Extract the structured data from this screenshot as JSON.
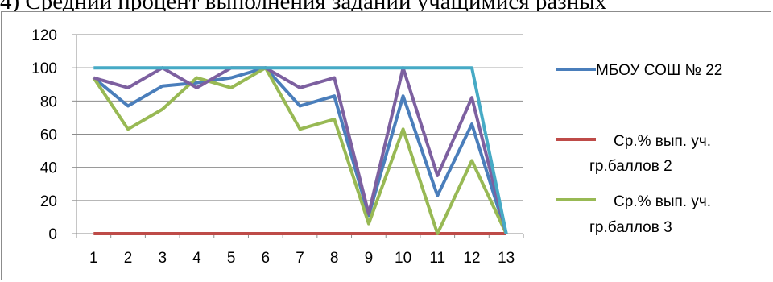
{
  "title": "4) Средний процент выполнения заданий учащимися разных",
  "chart_data": {
    "type": "line",
    "x": [
      1,
      2,
      3,
      4,
      5,
      6,
      7,
      8,
      9,
      10,
      11,
      12,
      13
    ],
    "ylim": [
      0,
      120
    ],
    "yticks": [
      0,
      20,
      40,
      60,
      80,
      100,
      120
    ],
    "grid": true,
    "legend_position": "right",
    "series": [
      {
        "name": "МБОУ СОШ № 22",
        "color": "#4a7ebb",
        "values": [
          94,
          77,
          89,
          91,
          94,
          100,
          77,
          83,
          11,
          83,
          23,
          66,
          0
        ]
      },
      {
        "name": "Ср.% вып. уч. гр.баллов 2",
        "color": "#be4b48",
        "values": [
          0,
          0,
          0,
          0,
          0,
          0,
          0,
          0,
          0,
          0,
          0,
          0,
          0
        ]
      },
      {
        "name": "Ср.% вып. уч. гр.баллов 3",
        "color": "#98b954",
        "values": [
          94,
          63,
          75,
          94,
          88,
          100,
          63,
          69,
          6,
          63,
          0,
          44,
          0
        ]
      },
      {
        "name": "",
        "color": "#7d60a0",
        "values": [
          94,
          88,
          100,
          88,
          100,
          100,
          88,
          94,
          12,
          100,
          35,
          82,
          0
        ]
      },
      {
        "name": "",
        "color": "#46aac5",
        "values": [
          100,
          100,
          100,
          100,
          100,
          100,
          100,
          100,
          100,
          100,
          100,
          100,
          0
        ]
      }
    ]
  }
}
